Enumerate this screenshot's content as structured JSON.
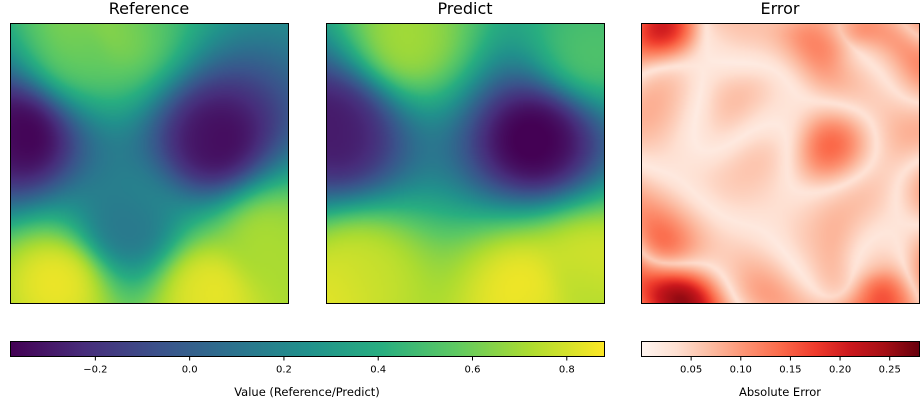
{
  "chart_data": [
    {
      "type": "heatmap",
      "title": "Reference",
      "colormap": "viridis",
      "grid": false,
      "axes_ticks": false,
      "value_range": [
        -0.38,
        0.88
      ],
      "blobs": [
        {
          "x": 0.03,
          "y": 0.4,
          "v": -0.32
        },
        {
          "x": 0.72,
          "y": 0.42,
          "v": -0.38
        },
        {
          "x": 0.18,
          "y": 0.92,
          "v": 0.82
        },
        {
          "x": 0.7,
          "y": 0.95,
          "v": 0.86
        },
        {
          "x": 0.93,
          "y": 0.78,
          "v": 0.72
        },
        {
          "x": 0.4,
          "y": 0.02,
          "v": 0.62
        },
        {
          "x": 0.25,
          "y": 0.1,
          "v": 0.55
        },
        {
          "x": 0.42,
          "y": 0.72,
          "v": 0.15
        }
      ]
    },
    {
      "type": "heatmap",
      "title": "Predict",
      "colormap": "viridis",
      "grid": false,
      "axes_ticks": false,
      "value_range": [
        -0.38,
        0.88
      ],
      "blobs": [
        {
          "x": 0.05,
          "y": 0.38,
          "v": -0.28
        },
        {
          "x": 0.76,
          "y": 0.42,
          "v": -0.36
        },
        {
          "x": 0.12,
          "y": 0.9,
          "v": 0.84
        },
        {
          "x": 0.72,
          "y": 0.96,
          "v": 0.84
        },
        {
          "x": 0.92,
          "y": 0.88,
          "v": 0.76
        },
        {
          "x": 0.3,
          "y": 0.05,
          "v": 0.64
        },
        {
          "x": 0.95,
          "y": 0.08,
          "v": 0.5
        }
      ]
    },
    {
      "type": "heatmap",
      "title": "Error",
      "colormap": "Reds",
      "grid": false,
      "axes_ticks": false,
      "value_range": [
        0.0,
        0.28
      ],
      "blobs": [
        {
          "x": 0.7,
          "y": 0.45,
          "v": 0.13
        },
        {
          "x": 0.8,
          "y": 0.17,
          "v": 0.1
        },
        {
          "x": 0.82,
          "y": 0.8,
          "v": 0.09
        },
        {
          "x": 0.3,
          "y": 0.6,
          "v": 0.08
        },
        {
          "x": 0.45,
          "y": 0.3,
          "v": 0.07
        },
        {
          "x": 0.35,
          "y": 0.1,
          "v": 0.06
        },
        {
          "x": 0.55,
          "y": 0.78,
          "v": 0.07
        },
        {
          "x": 0.15,
          "y": 0.35,
          "v": 0.06
        },
        {
          "x": 0.0,
          "y": 1.0,
          "v": 0.24
        },
        {
          "x": 0.85,
          "y": 1.0,
          "v": 0.22
        },
        {
          "x": 0.72,
          "y": 0.0,
          "v": 0.24
        },
        {
          "x": 0.1,
          "y": 0.0,
          "v": 0.15
        },
        {
          "x": 1.0,
          "y": 0.0,
          "v": 0.22
        }
      ]
    },
    {
      "type": "colorbar",
      "colormap": "viridis",
      "xlabel": "Value (Reference/Predict)",
      "range": [
        -0.38,
        0.88
      ],
      "ticks": [
        -0.2,
        0.0,
        0.2,
        0.4,
        0.6,
        0.8
      ],
      "tick_labels": [
        "−0.2",
        "0.0",
        "0.2",
        "0.4",
        "0.6",
        "0.8"
      ]
    },
    {
      "type": "colorbar",
      "colormap": "Reds",
      "xlabel": "Absolute Error",
      "range": [
        0.0,
        0.28
      ],
      "ticks": [
        0.05,
        0.1,
        0.15,
        0.2,
        0.25
      ],
      "tick_labels": [
        "0.05",
        "0.10",
        "0.15",
        "0.20",
        "0.25"
      ]
    }
  ]
}
